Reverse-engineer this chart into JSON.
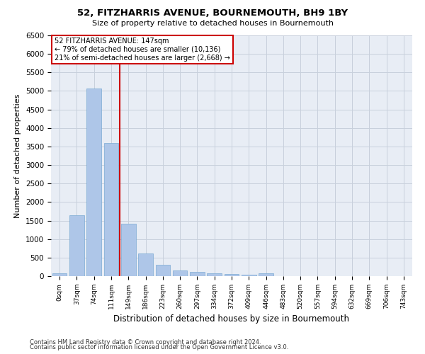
{
  "title1": "52, FITZHARRIS AVENUE, BOURNEMOUTH, BH9 1BY",
  "title2": "Size of property relative to detached houses in Bournemouth",
  "xlabel": "Distribution of detached houses by size in Bournemouth",
  "ylabel": "Number of detached properties",
  "bar_labels": [
    "0sqm",
    "37sqm",
    "74sqm",
    "111sqm",
    "149sqm",
    "186sqm",
    "223sqm",
    "260sqm",
    "297sqm",
    "334sqm",
    "372sqm",
    "409sqm",
    "446sqm",
    "483sqm",
    "520sqm",
    "557sqm",
    "594sqm",
    "632sqm",
    "669sqm",
    "706sqm",
    "743sqm"
  ],
  "bar_values": [
    75,
    1650,
    5060,
    3600,
    1420,
    615,
    300,
    155,
    110,
    80,
    55,
    30,
    70,
    0,
    0,
    0,
    0,
    0,
    0,
    0,
    0
  ],
  "bar_color": "#aec6e8",
  "bar_edgecolor": "#7baad4",
  "property_line_label": "52 FITZHARRIS AVENUE: 147sqm",
  "annotation_line1": "← 79% of detached houses are smaller (10,136)",
  "annotation_line2": "21% of semi-detached houses are larger (2,668) →",
  "annotation_box_color": "#ffffff",
  "annotation_box_edgecolor": "#cc0000",
  "vline_color": "#cc0000",
  "vline_x": 3.5,
  "ylim": [
    0,
    6500
  ],
  "yticks": [
    0,
    500,
    1000,
    1500,
    2000,
    2500,
    3000,
    3500,
    4000,
    4500,
    5000,
    5500,
    6000,
    6500
  ],
  "grid_color": "#c8d0dc",
  "bg_color": "#e8edf5",
  "footer1": "Contains HM Land Registry data © Crown copyright and database right 2024.",
  "footer2": "Contains public sector information licensed under the Open Government Licence v3.0."
}
